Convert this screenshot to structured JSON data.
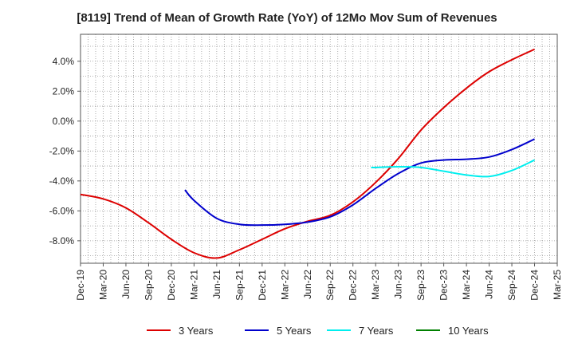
{
  "chart_data": {
    "type": "line",
    "title": "[8119]  Trend of Mean of Growth Rate (YoY) of 12Mo Mov Sum of Revenues",
    "xlabel": "",
    "ylabel": "",
    "x_tick_labels": [
      "Dec-19",
      "Mar-20",
      "Jun-20",
      "Sep-20",
      "Dec-20",
      "Mar-21",
      "Jun-21",
      "Sep-21",
      "Dec-21",
      "Mar-22",
      "Jun-22",
      "Sep-22",
      "Dec-22",
      "Mar-23",
      "Jun-23",
      "Sep-23",
      "Dec-23",
      "Mar-24",
      "Jun-24",
      "Sep-24",
      "Dec-24",
      "Mar-25"
    ],
    "y_tick_labels": [
      "4.0%",
      "2.0%",
      "0.0%",
      "-2.0%",
      "-4.0%",
      "-6.0%",
      "-8.0%"
    ],
    "y_tick_values": [
      4,
      2,
      0,
      -2,
      -4,
      -6,
      -8
    ],
    "ylim": [
      -9.5,
      5.8
    ],
    "grid": true,
    "legend_position": "bottom",
    "series": [
      {
        "name": "3 Years",
        "color": "#dd0000",
        "x": [
          0,
          1,
          2,
          3,
          4,
          5,
          6,
          7,
          8,
          9,
          10,
          11,
          12,
          13,
          14,
          15,
          16,
          17,
          18,
          19,
          20
        ],
        "values": [
          -4.9,
          -5.2,
          -5.8,
          -6.8,
          -7.9,
          -8.8,
          -9.15,
          -8.6,
          -7.9,
          -7.2,
          -6.7,
          -6.3,
          -5.4,
          -4.1,
          -2.5,
          -0.6,
          0.9,
          2.2,
          3.3,
          4.1,
          4.8
        ]
      },
      {
        "name": "5 Years",
        "color": "#0000cc",
        "x": [
          4.6,
          5,
          6,
          7,
          8,
          9,
          10,
          11,
          12,
          13,
          14,
          15,
          16,
          17,
          18,
          19,
          20
        ],
        "values": [
          -4.6,
          -5.3,
          -6.5,
          -6.9,
          -6.95,
          -6.9,
          -6.75,
          -6.4,
          -5.6,
          -4.5,
          -3.5,
          -2.8,
          -2.6,
          -2.55,
          -2.4,
          -1.9,
          -1.2
        ]
      },
      {
        "name": "7 Years",
        "color": "#00eeee",
        "x": [
          12.8,
          13,
          14,
          15,
          16,
          17,
          18,
          19,
          20
        ],
        "values": [
          -3.1,
          -3.1,
          -3.05,
          -3.1,
          -3.35,
          -3.6,
          -3.7,
          -3.3,
          -2.6
        ]
      },
      {
        "name": "10 Years",
        "color": "#008000",
        "x": [],
        "values": []
      }
    ]
  }
}
